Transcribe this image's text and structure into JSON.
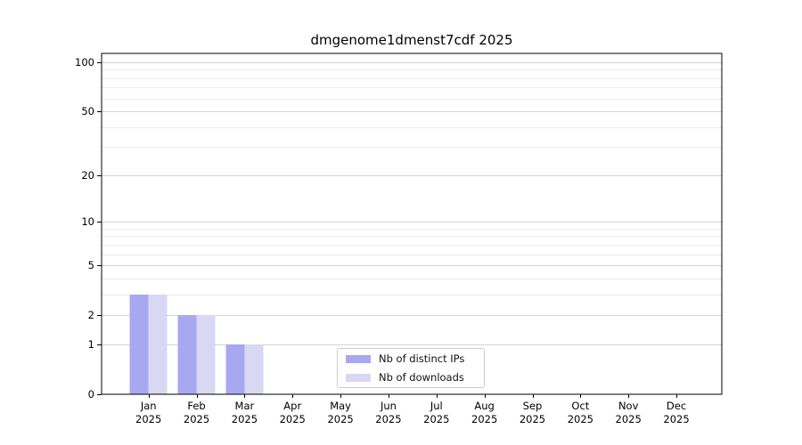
{
  "chart_data": {
    "type": "bar",
    "title": "dmgenome1dmenst7cdf 2025",
    "categories": [
      "Jan",
      "Feb",
      "Mar",
      "Apr",
      "May",
      "Jun",
      "Jul",
      "Aug",
      "Sep",
      "Oct",
      "Nov",
      "Dec"
    ],
    "year_label": "2025",
    "series": [
      {
        "name": "Nb of distinct IPs",
        "color": "#a8a8f0",
        "values": [
          3,
          2,
          1,
          0,
          0,
          0,
          0,
          0,
          0,
          0,
          0,
          0
        ]
      },
      {
        "name": "Nb of downloads",
        "color": "#d8d8f5",
        "values": [
          3,
          2,
          1,
          0,
          0,
          0,
          0,
          0,
          0,
          0,
          0,
          0
        ]
      }
    ],
    "xlabel": "",
    "ylabel": "",
    "y_scale": "log1p",
    "y_ticks": [
      0,
      1,
      2,
      5,
      10,
      20,
      50,
      100
    ],
    "y_minor_gridlines": [
      3,
      4,
      6,
      7,
      8,
      9,
      30,
      40,
      60,
      70,
      80,
      90
    ],
    "ylim": [
      0,
      113
    ],
    "grid": "horizontal",
    "legend_position": "lower-center-inside"
  },
  "colors": {
    "axis": "#000000",
    "grid_major": "#d4d4d4",
    "grid_minor": "#ededed",
    "text": "#000000",
    "legend_border": "#cccccc",
    "background": "#ffffff"
  }
}
